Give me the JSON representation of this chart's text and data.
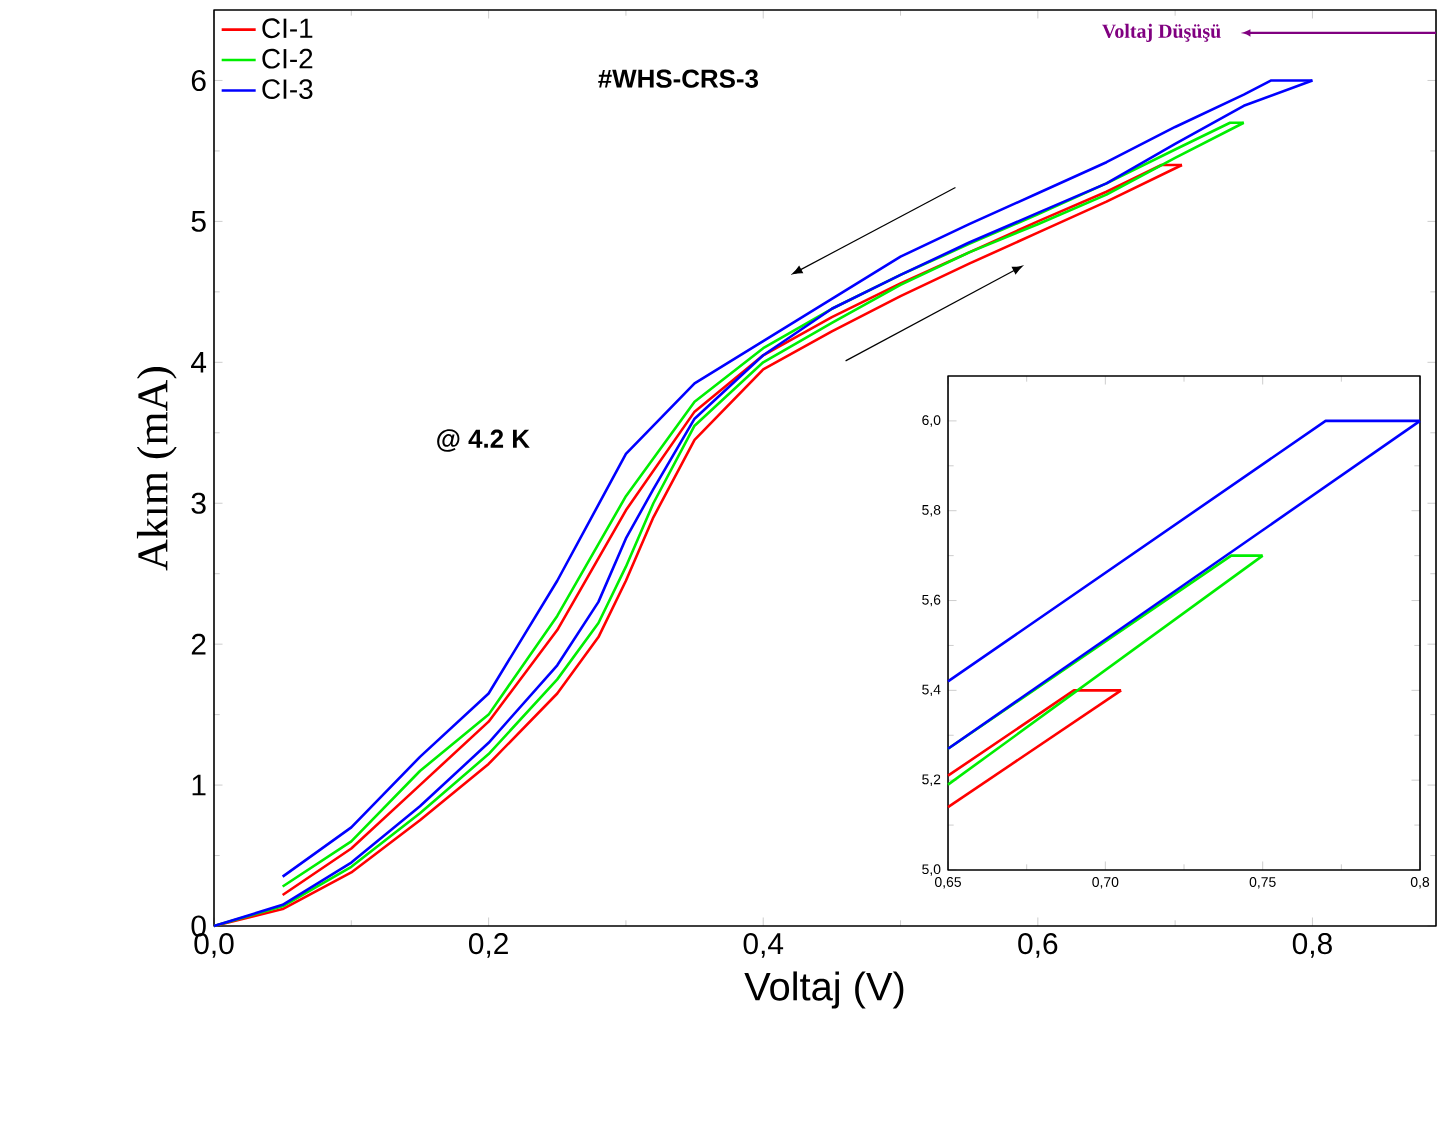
{
  "chart_data": [
    {
      "type": "line",
      "xlabel": "Voltaj (V)",
      "ylabel": "Akım (mA)",
      "legend": "top left",
      "annotations": [
        "#WHS-CRS-3",
        "@ 4.2 K",
        "Voltaj Düşüşü"
      ],
      "xlim": [
        0,
        0.89
      ],
      "ylim": [
        0,
        6.5
      ],
      "xticks": [
        {
          "value": 0,
          "label": "0,0"
        },
        {
          "value": 0.2,
          "label": "0,2"
        },
        {
          "value": 0.4,
          "label": "0,4"
        },
        {
          "value": 0.6,
          "label": "0,6"
        },
        {
          "value": 0.8,
          "label": "0,8"
        }
      ],
      "yticks": [
        0,
        1,
        2,
        3,
        4,
        5,
        6
      ],
      "series": [
        {
          "name": "CI-1",
          "color": "#ff0000",
          "x": [
            0,
            0.05,
            0.1,
            0.15,
            0.2,
            0.25,
            0.28,
            0.3,
            0.32,
            0.35,
            0.4,
            0.45,
            0.5,
            0.55,
            0.6,
            0.65,
            0.705
          ],
          "values": [
            0,
            0.12,
            0.38,
            0.75,
            1.15,
            1.65,
            2.05,
            2.45,
            2.9,
            3.45,
            3.95,
            4.22,
            4.47,
            4.7,
            4.92,
            5.14,
            5.4
          ]
        },
        {
          "color": "#ff0000",
          "x": [
            0.05,
            0.1,
            0.15,
            0.2,
            0.25,
            0.3,
            0.35,
            0.4,
            0.45,
            0.5,
            0.55,
            0.6,
            0.65,
            0.69,
            0.705
          ],
          "values": [
            0.22,
            0.55,
            1.0,
            1.45,
            2.1,
            2.95,
            3.65,
            4.05,
            4.32,
            4.56,
            4.78,
            5.0,
            5.21,
            5.4,
            5.4
          ]
        },
        {
          "name": "CI-2",
          "color": "#00ee00",
          "x": [
            0,
            0.05,
            0.1,
            0.15,
            0.2,
            0.25,
            0.28,
            0.3,
            0.32,
            0.35,
            0.4,
            0.45,
            0.5,
            0.55,
            0.6,
            0.65,
            0.7,
            0.75
          ],
          "values": [
            0,
            0.14,
            0.42,
            0.8,
            1.22,
            1.75,
            2.15,
            2.55,
            3.0,
            3.55,
            4.0,
            4.28,
            4.55,
            4.78,
            4.98,
            5.19,
            5.45,
            5.7
          ]
        },
        {
          "color": "#00ee00",
          "x": [
            0.05,
            0.1,
            0.15,
            0.2,
            0.25,
            0.3,
            0.35,
            0.4,
            0.45,
            0.5,
            0.55,
            0.6,
            0.65,
            0.7,
            0.74,
            0.75
          ],
          "values": [
            0.28,
            0.6,
            1.1,
            1.5,
            2.2,
            3.05,
            3.72,
            4.1,
            4.38,
            4.62,
            4.84,
            5.05,
            5.27,
            5.51,
            5.7,
            5.7
          ]
        },
        {
          "name": "CI-3",
          "color": "#0000ff",
          "x": [
            0,
            0.05,
            0.1,
            0.15,
            0.2,
            0.25,
            0.28,
            0.3,
            0.32,
            0.35,
            0.4,
            0.45,
            0.5,
            0.55,
            0.6,
            0.65,
            0.7,
            0.75,
            0.8
          ],
          "values": [
            0,
            0.15,
            0.45,
            0.85,
            1.3,
            1.85,
            2.3,
            2.75,
            3.1,
            3.6,
            4.05,
            4.38,
            4.62,
            4.85,
            5.06,
            5.27,
            5.55,
            5.82,
            6.0
          ]
        },
        {
          "color": "#0000ff",
          "x": [
            0.05,
            0.1,
            0.15,
            0.2,
            0.25,
            0.3,
            0.35,
            0.4,
            0.45,
            0.5,
            0.55,
            0.6,
            0.65,
            0.7,
            0.75,
            0.77,
            0.8
          ],
          "values": [
            0.35,
            0.7,
            1.2,
            1.65,
            2.45,
            3.35,
            3.85,
            4.15,
            4.45,
            4.75,
            4.98,
            5.2,
            5.42,
            5.67,
            5.9,
            6.0,
            6.0
          ]
        }
      ]
    },
    {
      "type": "line",
      "xlim": [
        0.65,
        0.8
      ],
      "ylim": [
        5.0,
        6.1
      ],
      "xticks": [
        {
          "value": 0.65,
          "label": "0,65"
        },
        {
          "value": 0.7,
          "label": "0,70"
        },
        {
          "value": 0.75,
          "label": "0,75"
        },
        {
          "value": 0.8,
          "label": "0,8"
        }
      ],
      "yticks": [
        {
          "value": 5.0,
          "label": "5,0"
        },
        {
          "value": 5.2,
          "label": "5,2"
        },
        {
          "value": 5.4,
          "label": "5,4"
        },
        {
          "value": 5.6,
          "label": "5,6"
        },
        {
          "value": 5.8,
          "label": "5,8"
        },
        {
          "value": 6.0,
          "label": "6,0"
        }
      ],
      "series": [
        {
          "color": "#ff0000",
          "x": [
            0.65,
            0.705
          ],
          "values": [
            5.14,
            5.4
          ]
        },
        {
          "color": "#ff0000",
          "x": [
            0.65,
            0.69,
            0.705
          ],
          "values": [
            5.21,
            5.4,
            5.4
          ]
        },
        {
          "color": "#00ee00",
          "x": [
            0.65,
            0.75
          ],
          "values": [
            5.19,
            5.7
          ]
        },
        {
          "color": "#00ee00",
          "x": [
            0.65,
            0.74,
            0.75
          ],
          "values": [
            5.27,
            5.7,
            5.7
          ]
        },
        {
          "color": "#0000ff",
          "x": [
            0.65,
            0.8
          ],
          "values": [
            5.27,
            6.0
          ]
        },
        {
          "color": "#0000ff",
          "x": [
            0.65,
            0.77,
            0.8
          ],
          "values": [
            5.42,
            6.0,
            6.0
          ]
        }
      ]
    }
  ]
}
